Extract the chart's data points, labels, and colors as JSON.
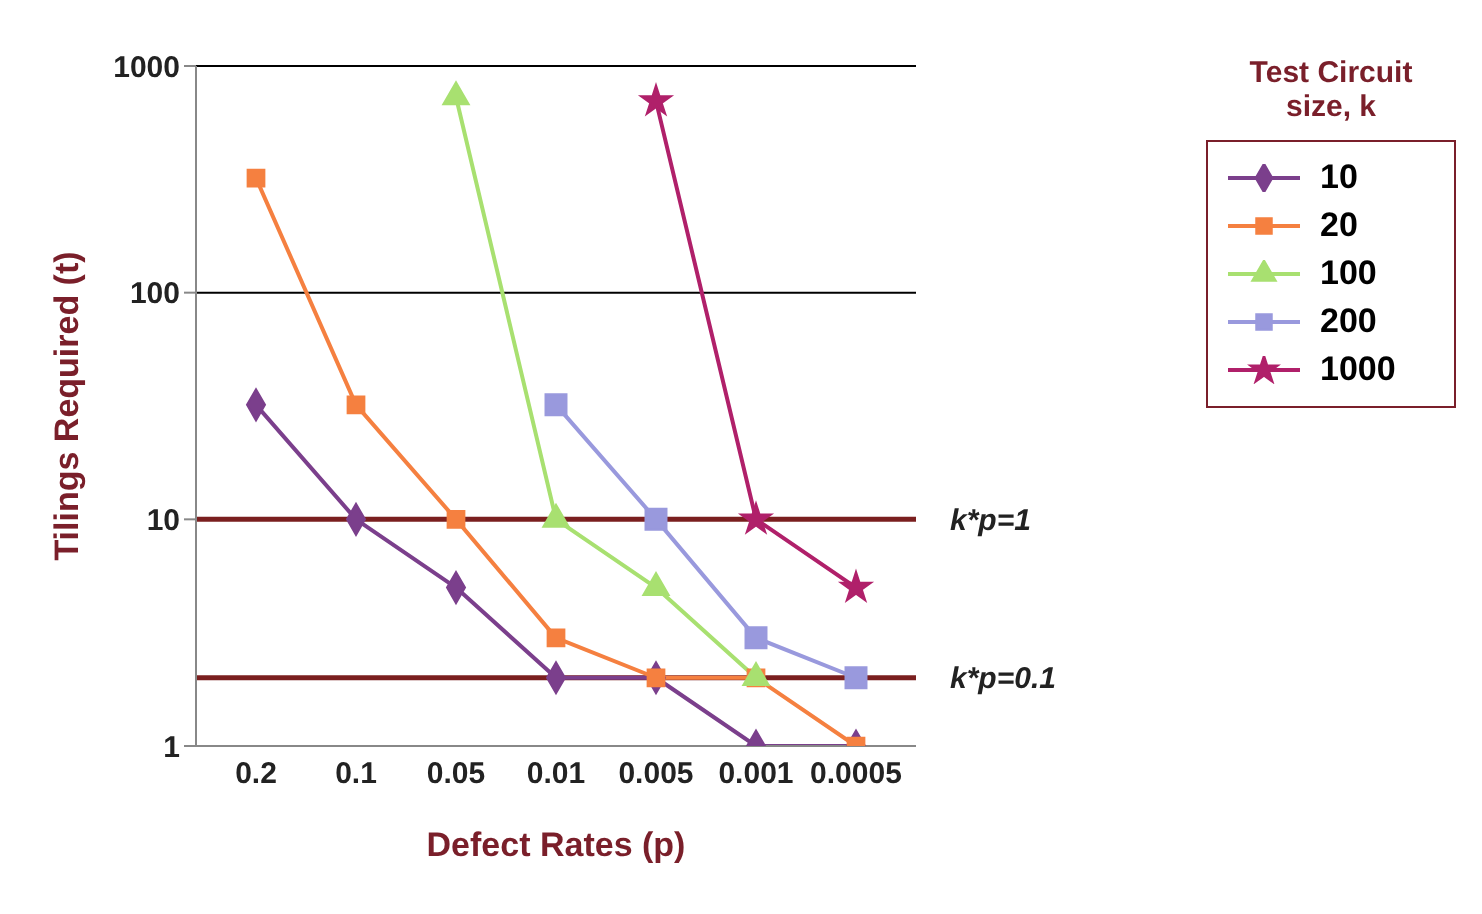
{
  "chart_data": {
    "type": "line",
    "xlabel": "Defect Rates (p)",
    "ylabel": "Tilings Required (t)",
    "legend_title": "Test Circuit size, k",
    "categories": [
      "0.2",
      "0.1",
      "0.05",
      "0.01",
      "0.005",
      "0.001",
      "0.0005"
    ],
    "series": [
      {
        "name": "10",
        "color": "#7b3f8c",
        "marker": "diamond",
        "values": [
          32,
          10,
          5,
          2,
          2,
          1,
          1
        ]
      },
      {
        "name": "20",
        "color": "#f58040",
        "marker": "square",
        "values": [
          320,
          32,
          10,
          3,
          2,
          2,
          1
        ]
      },
      {
        "name": "100",
        "color": "#a8e070",
        "marker": "triangle",
        "values": [
          null,
          null,
          730,
          10,
          5,
          2,
          null
        ]
      },
      {
        "name": "200",
        "color": "#9999dd",
        "marker": "square",
        "values": [
          null,
          null,
          null,
          32,
          10,
          3,
          2
        ]
      },
      {
        "name": "1000",
        "color": "#b0206a",
        "marker": "star",
        "values": [
          null,
          null,
          null,
          null,
          700,
          10,
          5
        ]
      }
    ],
    "log": "y",
    "ylim": [
      1,
      1000
    ],
    "yticks": [
      1,
      10,
      100,
      1000
    ],
    "legend": "top right",
    "line_style": "solid",
    "ref_lines": [
      {
        "axis": "y",
        "value": 1000,
        "color": "#000000"
      },
      {
        "axis": "y",
        "value": 100,
        "color": "#000000"
      },
      {
        "axis": "y",
        "value": 10,
        "color": "#7a1f1f"
      },
      {
        "axis": "y",
        "value": 2,
        "color": "#7a1f1f"
      }
    ],
    "annotations": [
      "k*p=1",
      "k*p=0.1"
    ]
  }
}
